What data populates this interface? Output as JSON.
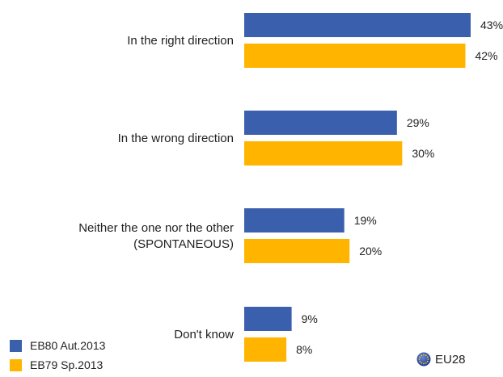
{
  "chart_data": {
    "type": "bar",
    "orientation": "horizontal",
    "categories": [
      [
        "In the right direction"
      ],
      [
        "In the wrong direction"
      ],
      [
        "Neither the one nor the other",
        "(SPONTANEOUS)"
      ],
      [
        "Don't know"
      ]
    ],
    "series": [
      {
        "name": "EB80 Aut.2013",
        "color": "#3a5fad",
        "values": [
          43,
          29,
          19,
          9
        ],
        "labels": [
          "43%",
          "29%",
          "19%",
          "9%"
        ]
      },
      {
        "name": "EB79 Sp.2013",
        "color": "#ffb400",
        "values": [
          42,
          30,
          20,
          8
        ],
        "labels": [
          "42%",
          "30%",
          "20%",
          "8%"
        ]
      }
    ],
    "xlim": [
      0,
      43
    ],
    "grid": false,
    "legend_position": "bottom-left"
  },
  "badge": {
    "label": "EU28",
    "icon": "eu-flag-icon"
  }
}
